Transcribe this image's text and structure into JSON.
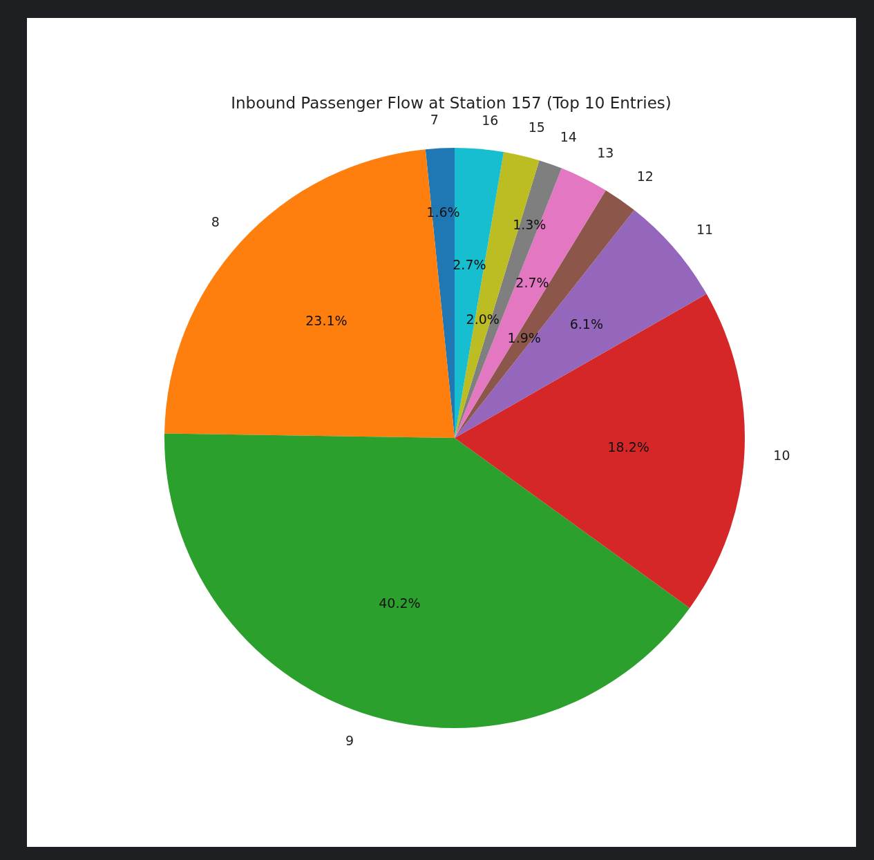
{
  "chart_data": {
    "type": "pie",
    "title": "Inbound Passenger Flow at Station 157 (Top 10 Entries)",
    "categories": [
      "7",
      "8",
      "9",
      "10",
      "11",
      "12",
      "13",
      "14",
      "15",
      "16"
    ],
    "values": [
      1.6,
      23.1,
      40.2,
      18.2,
      6.1,
      1.9,
      2.7,
      1.3,
      2.0,
      2.7
    ],
    "value_labels": [
      "1.6%",
      "23.1%",
      "40.2%",
      "18.2%",
      "6.1%",
      "1.9%",
      "2.7%",
      "1.3%",
      "2.0%",
      "2.7%"
    ],
    "colors": [
      "#1f77b4",
      "#ff7f0e",
      "#2ca02c",
      "#d62728",
      "#9467bd",
      "#8c564b",
      "#e377c2",
      "#7f7f7f",
      "#bcbd22",
      "#17becf"
    ],
    "legend": false
  }
}
